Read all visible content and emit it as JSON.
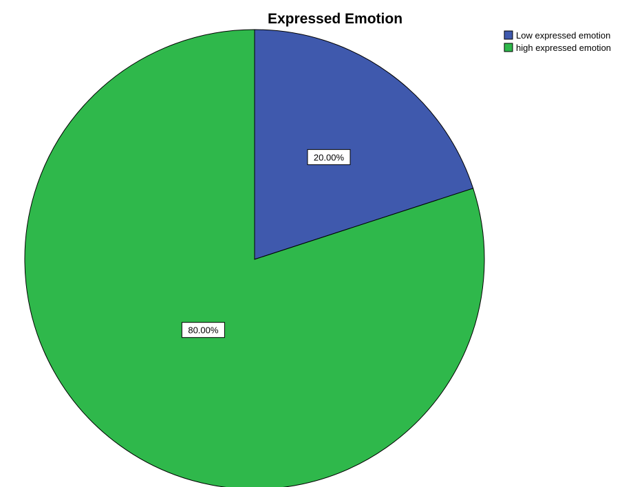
{
  "chart_data": {
    "type": "pie",
    "title": "Expressed Emotion",
    "categories": [
      "Low expressed emotion",
      "high expressed emotion"
    ],
    "values": [
      20.0,
      80.0
    ],
    "data_labels": [
      "20.00%",
      "80.00%"
    ],
    "colors": [
      "#3f59ad",
      "#2fb84b"
    ],
    "start_angle_deg": 0,
    "direction": "clockwise",
    "legend_position": "top-right",
    "edge_color": "#000000"
  }
}
